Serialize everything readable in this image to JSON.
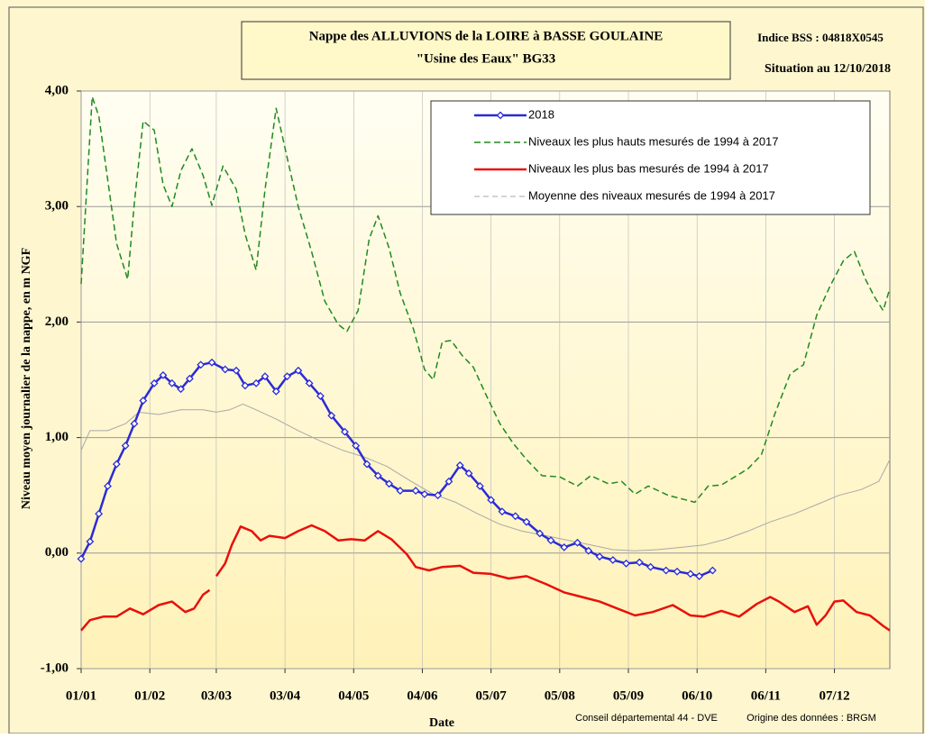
{
  "chart_data": {
    "type": "line",
    "title": "Nappe des ALLUVIONS de la LOIRE à BASSE GOULAINE",
    "subtitle": "\"Usine des Eaux\" BG33",
    "station": "Indice BSS : 04818X0545",
    "situation": "Situation au 12/10/2018",
    "y_label": "Niveau moyen journalier de la nappe, en m NGF",
    "x_label": "Date",
    "credits": [
      "Conseil départemental 44 - DVE",
      "Origine des données : BRGM"
    ],
    "xlim": [
      0,
      365
    ],
    "xticks": [
      {
        "value": 0,
        "label": "01/01"
      },
      {
        "value": 31,
        "label": "01/02"
      },
      {
        "value": 61,
        "label": "03/03"
      },
      {
        "value": 92,
        "label": "03/04"
      },
      {
        "value": 123,
        "label": "04/05"
      },
      {
        "value": 154,
        "label": "04/06"
      },
      {
        "value": 185,
        "label": "05/07"
      },
      {
        "value": 216,
        "label": "05/08"
      },
      {
        "value": 247,
        "label": "05/09"
      },
      {
        "value": 278,
        "label": "06/10"
      },
      {
        "value": 309,
        "label": "06/11"
      },
      {
        "value": 340,
        "label": "07/12"
      }
    ],
    "ylim": [
      -1,
      4
    ],
    "yticks": [
      {
        "value": -1,
        "label": "-1,00"
      },
      {
        "value": 0,
        "label": "0,00"
      },
      {
        "value": 1,
        "label": "1,00"
      },
      {
        "value": 2,
        "label": "2,00"
      },
      {
        "value": 3,
        "label": "3,00"
      },
      {
        "value": 4,
        "label": "4,00"
      }
    ],
    "grid": true,
    "legend": "upper right",
    "series": [
      {
        "name": "2018",
        "color": "#2b2bd6",
        "style": "markers",
        "x": [
          0,
          4,
          8,
          12,
          16,
          20,
          24,
          28,
          33,
          37,
          41,
          45,
          49,
          54,
          59,
          65,
          70,
          74,
          79,
          83,
          88,
          93,
          98,
          103,
          108,
          113,
          119,
          124,
          129,
          134,
          139,
          144,
          151,
          155,
          161,
          166,
          171,
          175,
          180,
          185,
          190,
          196,
          201,
          207,
          212,
          218,
          224,
          229,
          234,
          240,
          246,
          252,
          257,
          264,
          269,
          275,
          279,
          285
        ],
        "values": [
          -0.05,
          0.1,
          0.34,
          0.58,
          0.77,
          0.93,
          1.12,
          1.32,
          1.47,
          1.54,
          1.47,
          1.42,
          1.51,
          1.63,
          1.65,
          1.59,
          1.58,
          1.45,
          1.47,
          1.53,
          1.4,
          1.53,
          1.58,
          1.47,
          1.36,
          1.19,
          1.05,
          0.93,
          0.77,
          0.67,
          0.6,
          0.54,
          0.54,
          0.51,
          0.5,
          0.62,
          0.76,
          0.69,
          0.58,
          0.46,
          0.36,
          0.32,
          0.27,
          0.17,
          0.11,
          0.05,
          0.09,
          0.02,
          -0.03,
          -0.06,
          -0.09,
          -0.08,
          -0.12,
          -0.15,
          -0.16,
          -0.18,
          -0.2,
          -0.15
        ]
      },
      {
        "name": "Niveaux les plus hauts mesurés de 1994 à 2017",
        "color": "#1f8a1f",
        "style": "dashed",
        "x": [
          0,
          3,
          5,
          8,
          12,
          16,
          21,
          24,
          28,
          33,
          37,
          41,
          45,
          50,
          55,
          59,
          64,
          70,
          74,
          79,
          83,
          88,
          93,
          98,
          104,
          110,
          116,
          120,
          125,
          130,
          134,
          139,
          144,
          150,
          155,
          159,
          163,
          167,
          172,
          177,
          183,
          189,
          195,
          201,
          208,
          216,
          224,
          230,
          238,
          244,
          250,
          256,
          265,
          273,
          277,
          283,
          289,
          295,
          301,
          307,
          313,
          320,
          326,
          332,
          338,
          344,
          349,
          354,
          358,
          362,
          365
        ],
        "values": [
          2.33,
          3.31,
          3.95,
          3.78,
          3.23,
          2.68,
          2.37,
          3.03,
          3.74,
          3.66,
          3.19,
          3.0,
          3.31,
          3.5,
          3.27,
          3.01,
          3.35,
          3.15,
          2.76,
          2.45,
          3.15,
          3.85,
          3.42,
          3.0,
          2.61,
          2.18,
          1.98,
          1.92,
          2.1,
          2.72,
          2.92,
          2.64,
          2.25,
          1.94,
          1.59,
          1.5,
          1.83,
          1.84,
          1.71,
          1.61,
          1.36,
          1.12,
          0.95,
          0.81,
          0.67,
          0.66,
          0.58,
          0.67,
          0.6,
          0.62,
          0.51,
          0.58,
          0.5,
          0.46,
          0.44,
          0.58,
          0.59,
          0.66,
          0.73,
          0.85,
          1.2,
          1.55,
          1.63,
          2.06,
          2.31,
          2.53,
          2.61,
          2.37,
          2.22,
          2.1,
          2.29
        ]
      },
      {
        "name": "Niveaux les plus bas mesurés de 1994 à 2017",
        "color": "#e8100c",
        "style": "thick",
        "x": [
          0,
          4,
          10,
          16,
          22,
          28,
          35,
          41,
          47,
          51,
          55,
          58,
          59,
          61,
          65,
          68,
          72,
          77,
          81,
          85,
          92,
          98,
          104,
          110,
          116,
          122,
          128,
          134,
          140,
          147,
          151,
          157,
          163,
          171,
          177,
          185,
          193,
          201,
          210,
          218,
          226,
          234,
          242,
          250,
          258,
          267,
          275,
          281,
          289,
          297,
          305,
          311,
          315,
          322,
          328,
          332,
          336,
          340,
          344,
          350,
          356,
          362,
          365
        ],
        "values": [
          -0.67,
          -0.58,
          -0.55,
          -0.55,
          -0.48,
          -0.53,
          -0.45,
          -0.42,
          -0.51,
          -0.48,
          -0.36,
          -0.32,
          null,
          -0.2,
          -0.09,
          0.07,
          0.23,
          0.19,
          0.11,
          0.15,
          0.13,
          0.19,
          0.24,
          0.19,
          0.11,
          0.12,
          0.11,
          0.19,
          0.12,
          -0.01,
          -0.12,
          -0.15,
          -0.12,
          -0.11,
          -0.17,
          -0.18,
          -0.22,
          -0.2,
          -0.27,
          -0.34,
          -0.38,
          -0.42,
          -0.48,
          -0.54,
          -0.51,
          -0.45,
          -0.54,
          -0.55,
          -0.5,
          -0.55,
          -0.44,
          -0.38,
          -0.42,
          -0.51,
          -0.46,
          -0.62,
          -0.54,
          -0.42,
          -0.41,
          -0.51,
          -0.54,
          -0.63,
          -0.67
        ]
      },
      {
        "name": "Moyenne des niveaux mesurés de 1994 à 2017",
        "color": "#a8a8a8",
        "style": "thin",
        "x": [
          0,
          4,
          12,
          20,
          26,
          35,
          45,
          55,
          61,
          67,
          73,
          79,
          88,
          98,
          108,
          118,
          128,
          138,
          149,
          159,
          169,
          179,
          189,
          199,
          210,
          220,
          230,
          240,
          250,
          260,
          271,
          281,
          291,
          301,
          311,
          322,
          332,
          342,
          352,
          360,
          365
        ],
        "values": [
          0.89,
          1.06,
          1.06,
          1.12,
          1.22,
          1.2,
          1.24,
          1.24,
          1.22,
          1.24,
          1.29,
          1.24,
          1.16,
          1.06,
          0.97,
          0.89,
          0.83,
          0.75,
          0.62,
          0.51,
          0.44,
          0.34,
          0.25,
          0.19,
          0.15,
          0.11,
          0.07,
          0.03,
          0.02,
          0.03,
          0.05,
          0.07,
          0.12,
          0.19,
          0.27,
          0.34,
          0.42,
          0.5,
          0.55,
          0.62,
          0.81
        ]
      }
    ]
  }
}
